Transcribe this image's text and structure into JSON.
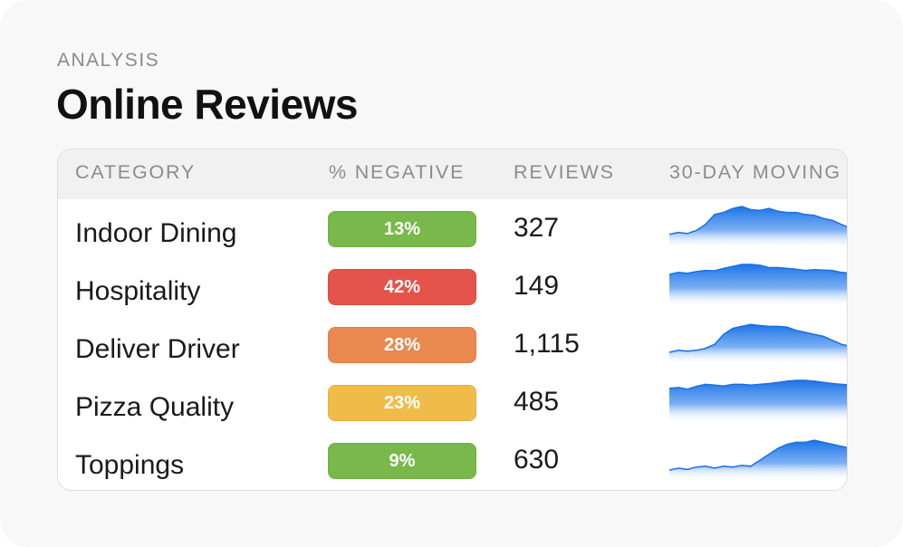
{
  "header": {
    "eyebrow": "ANALYSIS",
    "title": "Online Reviews"
  },
  "table": {
    "columns": [
      "CATEGORY",
      "% NEGATIVE",
      "REVIEWS",
      "30-DAY MOVING"
    ],
    "rows": [
      {
        "category": "Indoor Dining",
        "negative": "13%",
        "reviews": "327",
        "color": "#79b84a",
        "trend": [
          0.3,
          0.35,
          0.32,
          0.4,
          0.55,
          0.8,
          0.85,
          0.95,
          1,
          0.92,
          0.9,
          0.95,
          0.88,
          0.85,
          0.85,
          0.8,
          0.78,
          0.7,
          0.65,
          0.55,
          0.45
        ]
      },
      {
        "category": "Hospitality",
        "negative": "42%",
        "reviews": "149",
        "color": "#e5534b",
        "trend": [
          0.75,
          0.8,
          0.78,
          0.82,
          0.85,
          0.84,
          0.9,
          0.95,
          1,
          1,
          0.98,
          0.92,
          0.92,
          0.9,
          0.88,
          0.85,
          0.87,
          0.86,
          0.85,
          0.8,
          0.78
        ]
      },
      {
        "category": "Deliver Driver",
        "negative": "28%",
        "reviews": "1,115",
        "color": "#e9894f",
        "trend": [
          0.25,
          0.3,
          0.28,
          0.3,
          0.35,
          0.45,
          0.7,
          0.85,
          0.9,
          0.95,
          0.92,
          0.9,
          0.9,
          0.88,
          0.8,
          0.75,
          0.7,
          0.65,
          0.55,
          0.45,
          0.4
        ]
      },
      {
        "category": "Pizza Quality",
        "negative": "23%",
        "reviews": "485",
        "color": "#f0bc49",
        "trend": [
          0.8,
          0.82,
          0.78,
          0.85,
          0.9,
          0.88,
          0.86,
          0.9,
          0.9,
          0.88,
          0.9,
          0.92,
          0.95,
          0.98,
          1,
          1,
          0.98,
          0.95,
          0.92,
          0.9,
          0.88
        ]
      },
      {
        "category": "Toppings",
        "negative": "9%",
        "reviews": "630",
        "color": "#79b84a",
        "trend": [
          0.2,
          0.25,
          0.22,
          0.28,
          0.3,
          0.25,
          0.3,
          0.28,
          0.32,
          0.3,
          0.45,
          0.6,
          0.75,
          0.85,
          0.9,
          0.9,
          0.95,
          0.9,
          0.85,
          0.8,
          0.75
        ]
      }
    ]
  }
}
